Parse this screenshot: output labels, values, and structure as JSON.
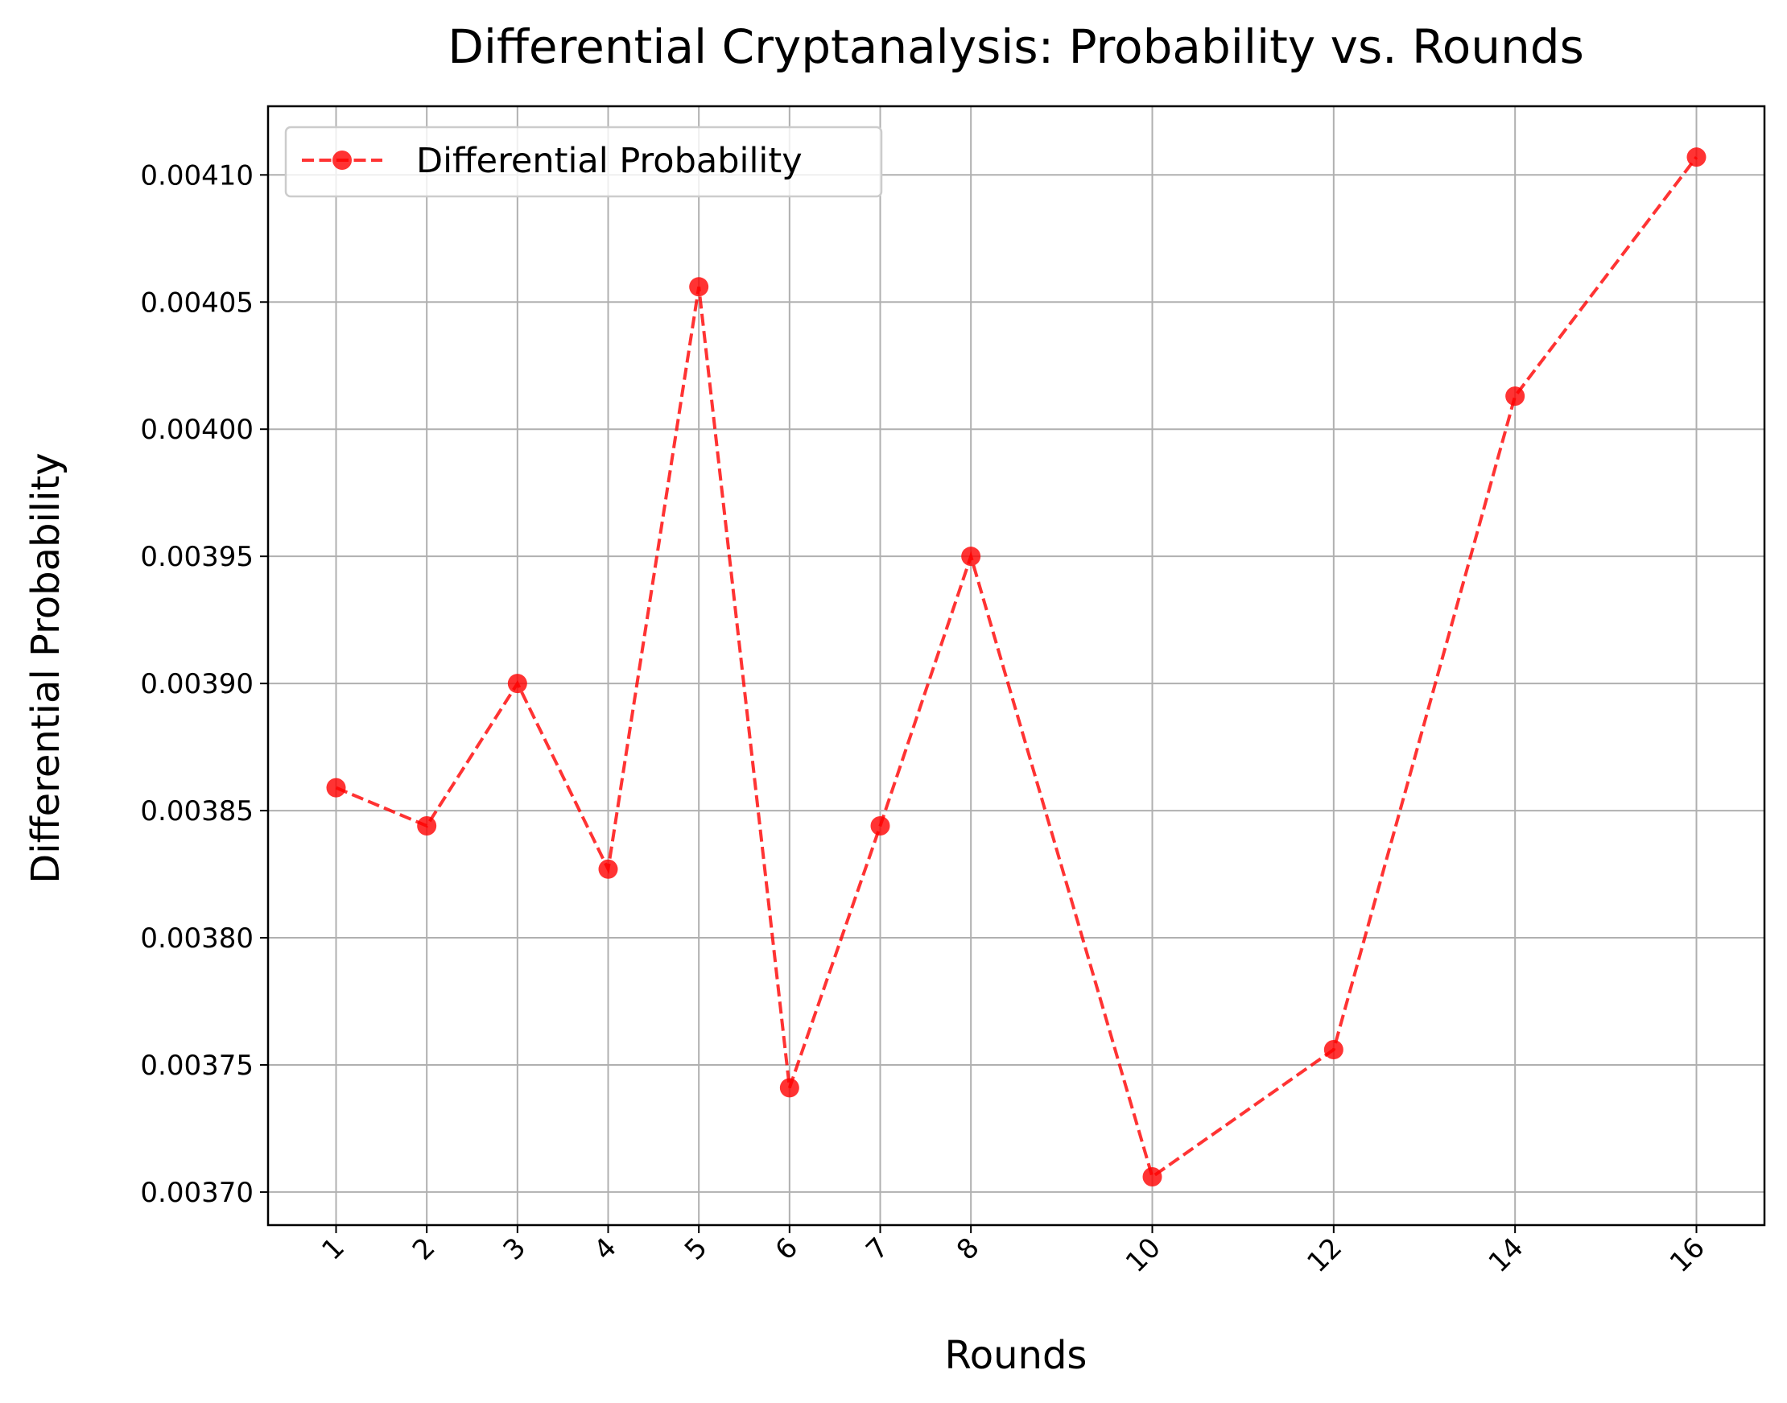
{
  "chart_data": {
    "type": "line",
    "title": "Differential Cryptanalysis: Probability vs. Rounds",
    "xlabel": "Rounds",
    "ylabel": "Differential Probability",
    "x": [
      1,
      2,
      3,
      4,
      5,
      6,
      7,
      8,
      10,
      12,
      14,
      16
    ],
    "x_tick_labels": [
      "1",
      "2",
      "3",
      "4",
      "5",
      "6",
      "7",
      "8",
      "10",
      "12",
      "14",
      "16"
    ],
    "xlim": [
      0.25,
      16.75
    ],
    "y_ticks": [
      0.0037,
      0.00375,
      0.0038,
      0.00385,
      0.0039,
      0.00395,
      0.004,
      0.00405,
      0.0041
    ],
    "y_tick_labels": [
      "0.00370",
      "0.00375",
      "0.00380",
      "0.00385",
      "0.00390",
      "0.00395",
      "0.00400",
      "0.00405",
      "0.00410"
    ],
    "ylim": [
      0.003687,
      0.004127
    ],
    "grid": true,
    "legend_position": "upper-left",
    "series": [
      {
        "name": "Differential Probability",
        "color": "#ff0000",
        "line_style": "dashed",
        "marker": "circle",
        "values": [
          0.003859,
          0.003844,
          0.0039,
          0.003827,
          0.004056,
          0.003741,
          0.003844,
          0.00395,
          0.003706,
          0.003756,
          0.004013,
          0.004107
        ]
      }
    ]
  }
}
